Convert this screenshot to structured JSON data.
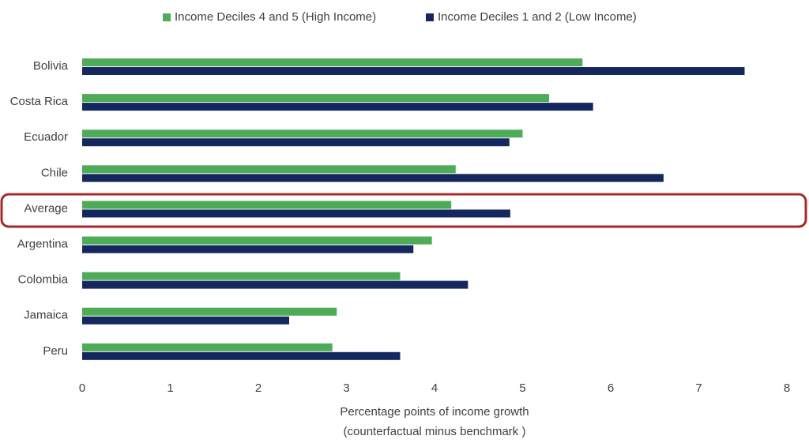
{
  "chart_data": {
    "type": "bar",
    "orientation": "horizontal",
    "categories": [
      "Bolivia",
      "Costa Rica",
      "Ecuador",
      "Chile",
      "Average",
      "Argentina",
      "Colombia",
      "Jamaica",
      "Peru"
    ],
    "series": [
      {
        "name": "Income Deciles 4 and 5 (High Income)",
        "color": "#4eab58",
        "values": [
          5.68,
          5.3,
          5.0,
          4.24,
          4.19,
          3.97,
          3.61,
          2.89,
          2.84
        ]
      },
      {
        "name": "Income Deciles 1 and 2 (Low Income)",
        "color": "#14275e",
        "values": [
          7.52,
          5.8,
          4.85,
          6.6,
          4.86,
          3.76,
          4.38,
          2.35,
          3.61
        ]
      }
    ],
    "xlim": [
      0,
      8
    ],
    "xticks": [
      0,
      1,
      2,
      3,
      4,
      5,
      6,
      7,
      8
    ],
    "xlabel": [
      "Percentage points of income growth",
      "(counterfactual minus benchmark )"
    ],
    "legend": "top",
    "grid": false
  }
}
